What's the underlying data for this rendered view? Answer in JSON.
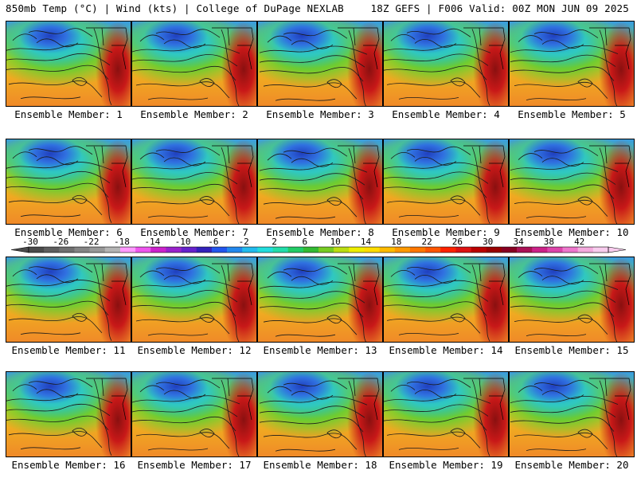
{
  "header": {
    "title_left": "850mb Temp (°C) | Wind (kts) | College of DuPage NEXLAB",
    "title_right": "18Z GEFS | F006 Valid: 00Z MON JUN 09 2025"
  },
  "member_prefix": "Ensemble Member:",
  "members": [
    "1",
    "2",
    "3",
    "4",
    "5",
    "6",
    "7",
    "8",
    "9",
    "10",
    "11",
    "12",
    "13",
    "14",
    "15",
    "16",
    "17",
    "18",
    "19",
    "20"
  ],
  "colorbar": {
    "tick_labels": [
      "-30",
      "-26",
      "-22",
      "-18",
      "-14",
      "-10",
      "-6",
      "-2",
      "2",
      "6",
      "10",
      "14",
      "18",
      "22",
      "26",
      "30",
      "34",
      "38",
      "42"
    ],
    "colors": [
      "#4a4a4a",
      "#5e5e5e",
      "#707070",
      "#848484",
      "#989898",
      "#b4b4b4",
      "#ff99ff",
      "#ee55ee",
      "#cc22cc",
      "#9922cc",
      "#6622cc",
      "#3322bb",
      "#2255ee",
      "#2288ee",
      "#22bbee",
      "#22dddd",
      "#22ddaa",
      "#22cc66",
      "#33bb33",
      "#77cc22",
      "#bbdd11",
      "#eeee00",
      "#ffdd00",
      "#ffbb00",
      "#ff9900",
      "#ff7700",
      "#ff5500",
      "#ff2200",
      "#dd1111",
      "#bb0000",
      "#990000",
      "#880022",
      "#aa1155",
      "#cc2288",
      "#dd44aa",
      "#ee77cc",
      "#f4aadd",
      "#f8ccee"
    ]
  }
}
